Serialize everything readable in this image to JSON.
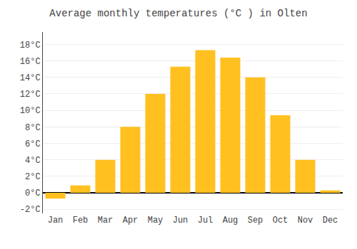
{
  "chart_data": {
    "type": "bar",
    "title": "Average monthly temperatures (°C ) in Olten",
    "categories": [
      "Jan",
      "Feb",
      "Mar",
      "Apr",
      "May",
      "Jun",
      "Jul",
      "Aug",
      "Sep",
      "Oct",
      "Nov",
      "Dec"
    ],
    "values": [
      -0.7,
      0.9,
      4.0,
      8.0,
      12.0,
      15.3,
      17.3,
      16.4,
      14.0,
      9.4,
      4.0,
      0.3
    ],
    "color": "#FFC020",
    "ylim": [
      -2.5,
      19.5
    ],
    "yticks": [
      {
        "value": -2,
        "label": "-2°C"
      },
      {
        "value": 0,
        "label": "0°C"
      },
      {
        "value": 2,
        "label": "2°C"
      },
      {
        "value": 4,
        "label": "4°C"
      },
      {
        "value": 6,
        "label": "6°C"
      },
      {
        "value": 8,
        "label": "8°C"
      },
      {
        "value": 10,
        "label": "10°C"
      },
      {
        "value": 12,
        "label": "12°C"
      },
      {
        "value": 14,
        "label": "14°C"
      },
      {
        "value": 16,
        "label": "16°C"
      },
      {
        "value": 18,
        "label": "18°C"
      }
    ],
    "grid": true
  }
}
